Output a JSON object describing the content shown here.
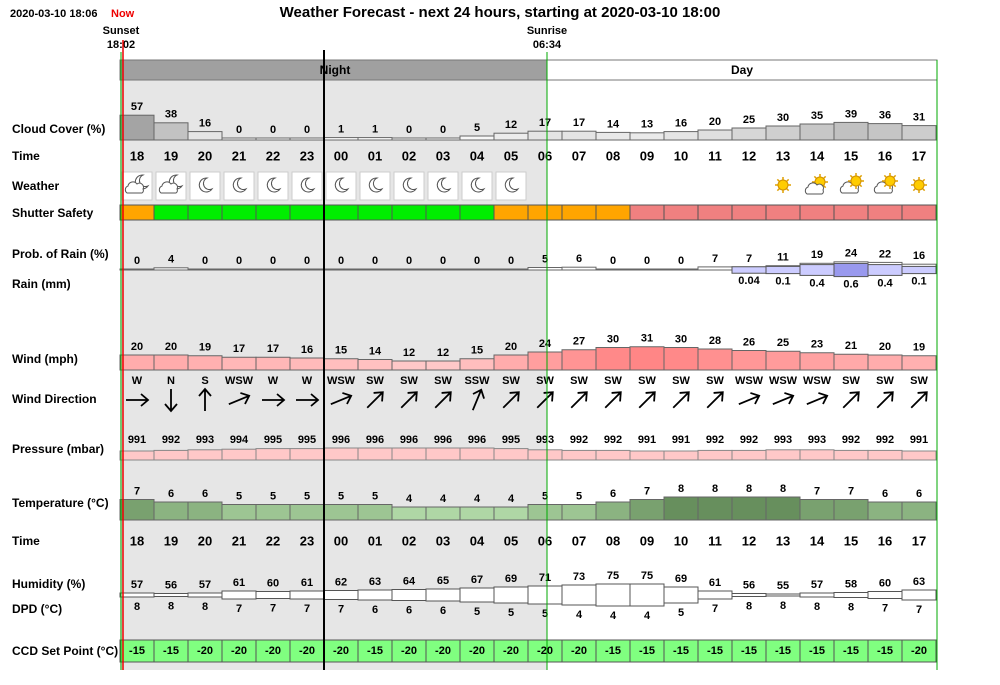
{
  "header": {
    "timestamp": "2020-03-10 18:06",
    "now": "Now",
    "title": "Weather Forecast - next 24 hours, starting at 2020-03-10 18:00"
  },
  "sun": {
    "sunset_label": "Sunset",
    "sunset_time": "18:02",
    "sunrise_label": "Sunrise",
    "sunrise_time": "06:34"
  },
  "periods": {
    "night": "Night",
    "day": "Day"
  },
  "labels": {
    "cloud_cover": "Cloud Cover (%)",
    "time": "Time",
    "weather": "Weather",
    "shutter_safety": "Shutter Safety",
    "rain_probability": "Prob. of Rain (%)",
    "rain_mm": "Rain (mm)",
    "wind_speed": "Wind (mph)",
    "wind_direction": "Wind Direction",
    "pressure": "Pressure (mbar)",
    "temperature": "Temperature (°C)",
    "humidity": "Humidity (%)",
    "dpd": "DPD (°C)",
    "ccd_set_point": "CCD Set Point (°C)"
  },
  "hours": [
    "18",
    "19",
    "20",
    "21",
    "22",
    "23",
    "00",
    "01",
    "02",
    "03",
    "04",
    "05",
    "06",
    "07",
    "08",
    "09",
    "10",
    "11",
    "12",
    "13",
    "14",
    "15",
    "16",
    "17"
  ],
  "cloud_cover": [
    57,
    38,
    16,
    0,
    0,
    0,
    1,
    1,
    0,
    0,
    5,
    12,
    17,
    17,
    14,
    13,
    16,
    20,
    25,
    30,
    35,
    39,
    36,
    31
  ],
  "shutter_safety": [
    "#ffa500",
    "#00ee00",
    "#00ee00",
    "#00ee00",
    "#00ee00",
    "#00ee00",
    "#00ee00",
    "#00ee00",
    "#00ee00",
    "#00ee00",
    "#00ee00",
    "#ffa500",
    "#ffa500",
    "#ffa500",
    "#ffa500",
    "#f08080",
    "#f08080",
    "#f08080",
    "#f08080",
    "#f08080",
    "#f08080",
    "#f08080",
    "#f08080",
    "#f08080"
  ],
  "rain_probability": [
    0,
    4,
    0,
    0,
    0,
    0,
    0,
    0,
    0,
    0,
    0,
    0,
    5,
    6,
    0,
    0,
    0,
    7,
    7,
    11,
    19,
    24,
    22,
    16
  ],
  "rain_mm": [
    null,
    null,
    null,
    null,
    null,
    null,
    null,
    null,
    null,
    null,
    null,
    null,
    null,
    null,
    null,
    null,
    null,
    null,
    0.04,
    0.1,
    0.4,
    0.6,
    0.4,
    0.1
  ],
  "wind_speed": [
    20,
    20,
    19,
    17,
    17,
    16,
    15,
    14,
    12,
    12,
    15,
    20,
    24,
    27,
    30,
    31,
    30,
    28,
    26,
    25,
    23,
    21,
    20,
    19
  ],
  "wind_direction": [
    "W",
    "N",
    "S",
    "WSW",
    "W",
    "W",
    "WSW",
    "SW",
    "SW",
    "SW",
    "SSW",
    "SW",
    "SW",
    "SW",
    "SW",
    "SW",
    "SW",
    "SW",
    "WSW",
    "WSW",
    "WSW",
    "SW",
    "SW",
    "SW"
  ],
  "pressure": [
    991,
    992,
    993,
    994,
    995,
    995,
    996,
    996,
    996,
    996,
    996,
    995,
    993,
    992,
    992,
    991,
    991,
    992,
    992,
    993,
    993,
    992,
    992,
    991
  ],
  "temperature": [
    7,
    6,
    6,
    5,
    5,
    5,
    5,
    5,
    4,
    4,
    4,
    4,
    5,
    5,
    6,
    7,
    8,
    8,
    8,
    8,
    7,
    7,
    6,
    6
  ],
  "humidity": [
    57,
    56,
    57,
    61,
    60,
    61,
    62,
    63,
    64,
    65,
    67,
    69,
    71,
    73,
    75,
    75,
    69,
    61,
    56,
    55,
    57,
    58,
    60,
    63
  ],
  "dpd": [
    8,
    8,
    8,
    7,
    7,
    7,
    7,
    6,
    6,
    6,
    5,
    5,
    5,
    4,
    4,
    4,
    5,
    7,
    8,
    8,
    8,
    8,
    7,
    7
  ],
  "ccd_set_point": [
    -15,
    -15,
    -20,
    -20,
    -20,
    -20,
    -20,
    -15,
    -20,
    -20,
    -20,
    -20,
    -20,
    -20,
    -15,
    -15,
    -15,
    -15,
    -15,
    -15,
    -15,
    -15,
    -15,
    -20
  ]
}
